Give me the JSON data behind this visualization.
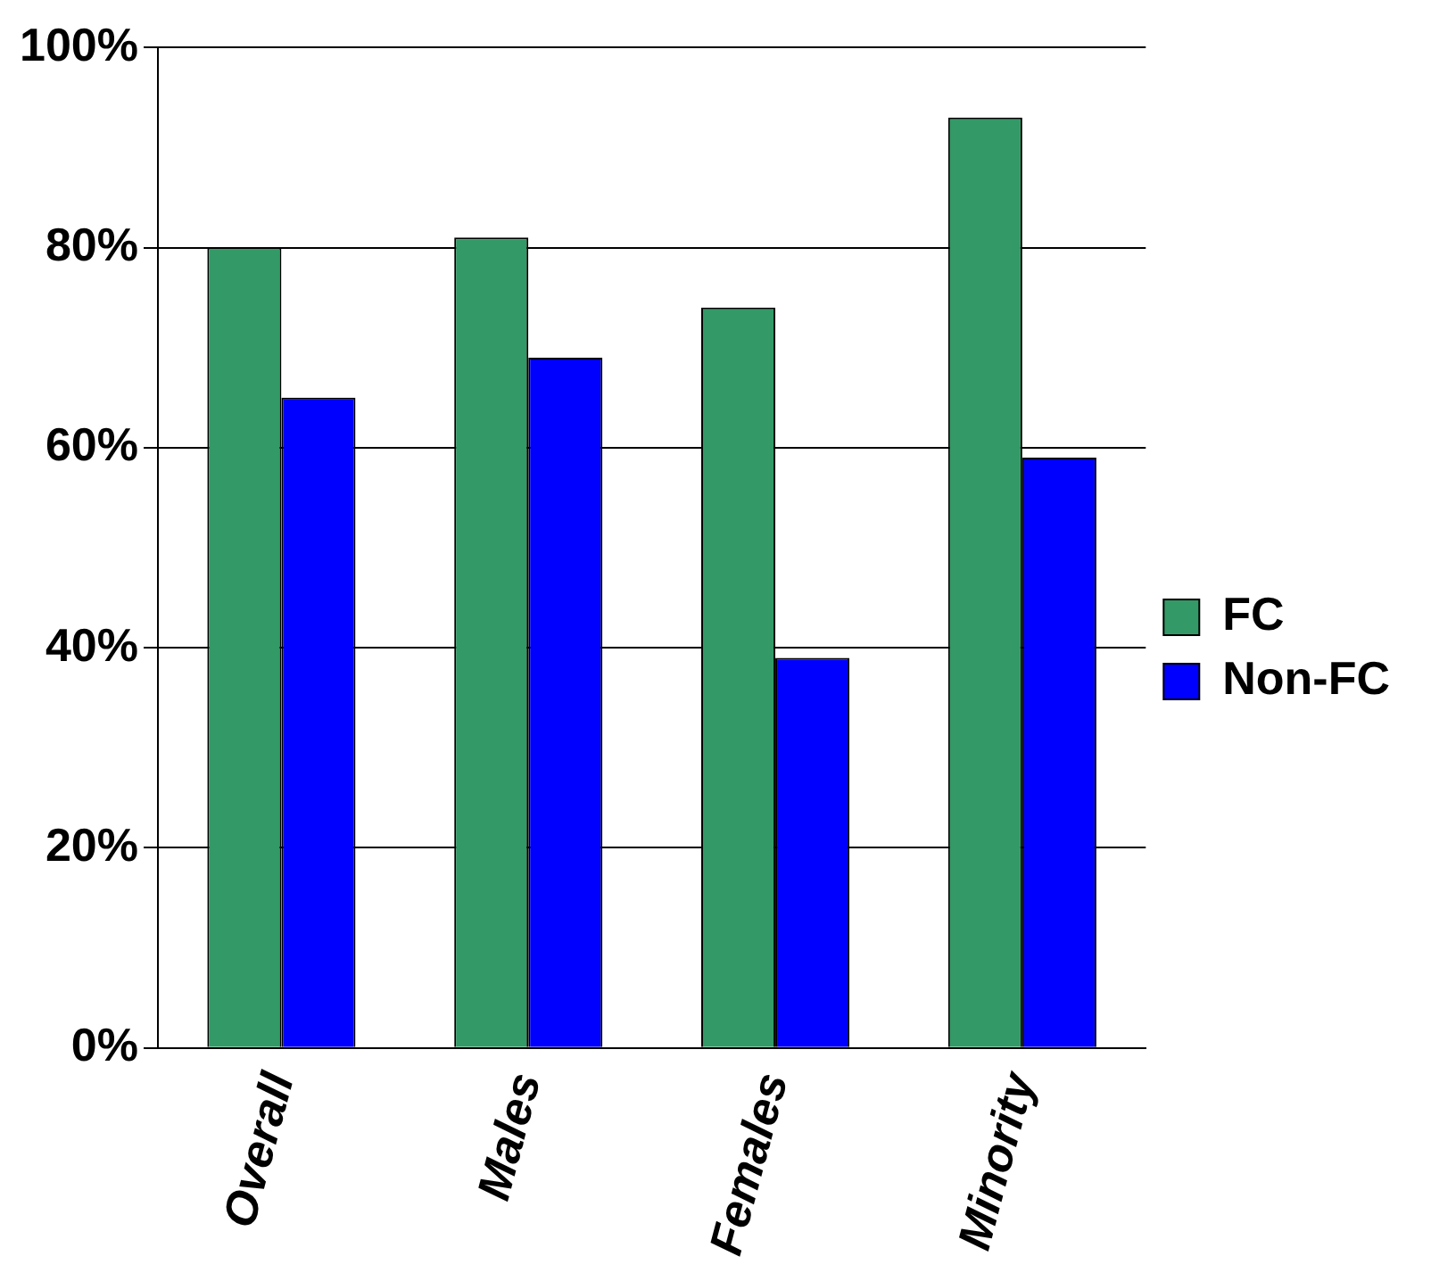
{
  "chart_data": {
    "type": "bar",
    "categories": [
      "Overall",
      "Males",
      "Females",
      "Minority"
    ],
    "series": [
      {
        "name": "FC",
        "color": "#339966",
        "values": [
          80,
          81,
          74,
          93
        ]
      },
      {
        "name": "Non-FC",
        "color": "#0000ff",
        "values": [
          65,
          69,
          39,
          59
        ]
      }
    ],
    "ylim": [
      0,
      100
    ],
    "yticks": [
      {
        "value": 0,
        "label": "0%"
      },
      {
        "value": 20,
        "label": "20%"
      },
      {
        "value": 40,
        "label": "40%"
      },
      {
        "value": 60,
        "label": "60%"
      },
      {
        "value": 80,
        "label": "80%"
      },
      {
        "value": 100,
        "label": "100%"
      }
    ],
    "grid": "y",
    "legend": "right"
  }
}
